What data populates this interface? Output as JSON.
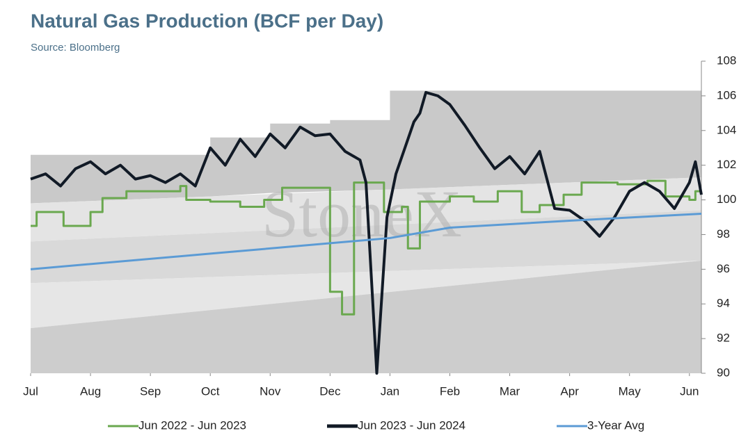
{
  "chart_data": {
    "type": "line",
    "title": "Natural Gas Production (BCF per Day)",
    "subtitle": "Source: Bloomberg",
    "watermark": "StoneX",
    "xlim": [
      0,
      11.2
    ],
    "xticks": [
      {
        "value": 0,
        "label": "Jul"
      },
      {
        "value": 1,
        "label": "Aug"
      },
      {
        "value": 2,
        "label": "Sep"
      },
      {
        "value": 3,
        "label": "Oct"
      },
      {
        "value": 4,
        "label": "Nov"
      },
      {
        "value": 5,
        "label": "Dec"
      },
      {
        "value": 6,
        "label": "Jan"
      },
      {
        "value": 7,
        "label": "Feb"
      },
      {
        "value": 8,
        "label": "Mar"
      },
      {
        "value": 9,
        "label": "Apr"
      },
      {
        "value": 10,
        "label": "May"
      },
      {
        "value": 11,
        "label": "Jun"
      }
    ],
    "ylim": [
      90,
      108
    ],
    "yticks": [
      90,
      92,
      94,
      96,
      98,
      100,
      102,
      104,
      106,
      108
    ],
    "bands": [
      {
        "color": "#c9c9c9",
        "x": [
          0,
          3,
          3,
          4,
          4,
          5,
          5,
          6,
          6,
          11.2
        ],
        "upper": [
          102.6,
          102.6,
          103.6,
          103.6,
          104.4,
          104.4,
          104.6,
          104.6,
          106.3,
          106.3
        ],
        "lower": [
          99.8,
          100.2,
          100.2,
          100.4,
          100.4,
          100.5,
          100.5,
          100.6,
          100.6,
          101.3
        ]
      },
      {
        "color": "#e4e4e4",
        "x": [
          0,
          11.2
        ],
        "upper": [
          99.8,
          101.3
        ],
        "lower": [
          97.6,
          99.4
        ]
      },
      {
        "color": "#d9d9d9",
        "x": [
          0,
          11.2
        ],
        "upper": [
          97.6,
          99.4
        ],
        "lower": [
          95.2,
          96.5
        ]
      },
      {
        "color": "#e6e6e6",
        "x": [
          0,
          11.2
        ],
        "upper": [
          95.2,
          96.5
        ],
        "lower": [
          92.6,
          96.5
        ]
      },
      {
        "color": "#cdcdcd",
        "x": [
          0,
          11.2
        ],
        "upper": [
          92.6,
          96.5
        ],
        "lower": [
          90,
          90
        ]
      }
    ],
    "series": [
      {
        "name": "Jun 2022 - Jun 2023",
        "color": "#6aa84f",
        "step": true,
        "x": [
          0,
          0.1,
          0.55,
          1.0,
          1.2,
          1.6,
          2.5,
          2.6,
          3.0,
          3.5,
          3.9,
          4.2,
          5.0,
          5.2,
          5.4,
          5.9,
          6.2,
          6.3,
          6.5,
          7.0,
          7.4,
          7.8,
          8.2,
          8.5,
          8.9,
          9.2,
          9.8,
          10.3,
          10.6,
          11.0,
          11.1,
          11.2
        ],
        "values": [
          98.5,
          99.3,
          98.5,
          99.3,
          100.1,
          100.5,
          100.8,
          100.0,
          99.9,
          99.6,
          100.0,
          100.7,
          94.7,
          93.4,
          101.0,
          99.3,
          99.6,
          97.2,
          99.9,
          100.2,
          99.9,
          100.5,
          99.3,
          99.7,
          100.3,
          101.0,
          100.9,
          101.1,
          100.2,
          100.0,
          100.5,
          100.5
        ]
      },
      {
        "name": "Jun 2023 - Jun 2024",
        "color": "#111a26",
        "x": [
          0,
          0.25,
          0.5,
          0.75,
          1.0,
          1.25,
          1.5,
          1.75,
          2.0,
          2.25,
          2.5,
          2.75,
          3.0,
          3.25,
          3.5,
          3.75,
          4.0,
          4.25,
          4.5,
          4.75,
          5.0,
          5.25,
          5.5,
          5.6,
          5.78,
          5.95,
          6.1,
          6.25,
          6.4,
          6.5,
          6.6,
          6.8,
          7.0,
          7.25,
          7.5,
          7.75,
          8.0,
          8.25,
          8.5,
          8.75,
          9.0,
          9.25,
          9.5,
          9.75,
          10.0,
          10.25,
          10.5,
          10.75,
          11.0,
          11.1,
          11.2
        ],
        "values": [
          101.2,
          101.5,
          100.8,
          101.8,
          102.2,
          101.5,
          102.0,
          101.2,
          101.4,
          101.0,
          101.5,
          100.8,
          103.0,
          102.0,
          103.5,
          102.5,
          103.8,
          103.0,
          104.2,
          103.7,
          103.8,
          102.8,
          102.3,
          101.0,
          90.0,
          99.0,
          101.5,
          103.0,
          104.5,
          105.0,
          106.2,
          106.0,
          105.5,
          104.3,
          103.0,
          101.8,
          102.5,
          101.5,
          102.8,
          99.5,
          99.4,
          98.8,
          97.9,
          99.0,
          100.5,
          101.0,
          100.5,
          99.5,
          101.0,
          102.2,
          100.3
        ]
      },
      {
        "name": "3-Year Avg",
        "color": "#5b9bd5",
        "x": [
          0,
          3,
          6,
          7,
          9,
          11.2
        ],
        "values": [
          96.0,
          96.9,
          97.8,
          98.4,
          98.8,
          99.2
        ]
      }
    ]
  }
}
